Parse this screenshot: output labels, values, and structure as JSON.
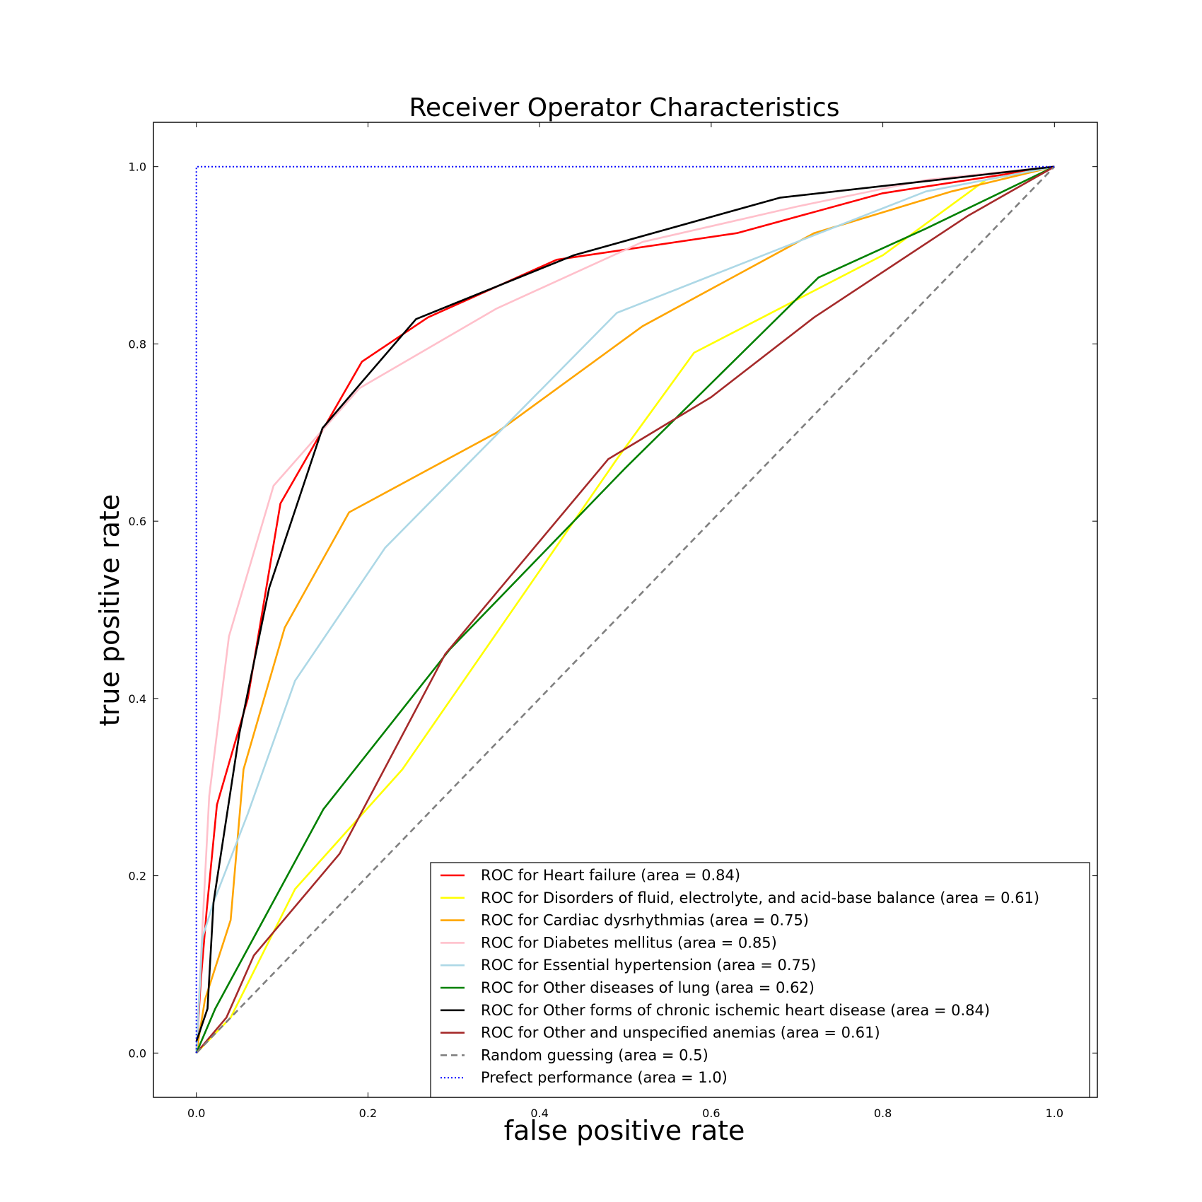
{
  "chart_data": {
    "type": "line",
    "title": "Receiver Operator Characteristics",
    "xlabel": "false positive rate",
    "ylabel": "true positive rate",
    "xlim": [
      -0.05,
      1.05
    ],
    "ylim": [
      -0.05,
      1.05
    ],
    "xticks": [
      "0.0",
      "0.2",
      "0.4",
      "0.6",
      "0.8",
      "1.0"
    ],
    "yticks": [
      "0.0",
      "0.2",
      "0.4",
      "0.6",
      "0.8",
      "1.0"
    ],
    "grid": false,
    "legend_position": "lower-right",
    "series": [
      {
        "name": "ROC for Heart failure (area = 0.84)",
        "color": "#ff0000",
        "style": "solid",
        "x": [
          0,
          0.005,
          0.012,
          0.024,
          0.06,
          0.098,
          0.193,
          0.27,
          0.42,
          0.63,
          0.8,
          1.0
        ],
        "y": [
          0,
          0.08,
          0.16,
          0.28,
          0.4,
          0.62,
          0.78,
          0.83,
          0.895,
          0.925,
          0.97,
          1.0
        ]
      },
      {
        "name": "ROC for Disorders of fluid, electrolyte, and acid-base balance (area = 0.61)",
        "color": "#ffff00",
        "style": "solid",
        "x": [
          0,
          0.04,
          0.115,
          0.24,
          0.49,
          0.58,
          0.8,
          0.92,
          1.0
        ],
        "y": [
          0,
          0.04,
          0.185,
          0.32,
          0.67,
          0.79,
          0.9,
          0.985,
          1.0
        ]
      },
      {
        "name": "ROC for Cardiac dysrhythmias (area = 0.75)",
        "color": "#ffa500",
        "style": "solid",
        "x": [
          0,
          0.01,
          0.04,
          0.055,
          0.103,
          0.178,
          0.35,
          0.52,
          0.72,
          0.88,
          1.0
        ],
        "y": [
          0,
          0.06,
          0.15,
          0.32,
          0.48,
          0.61,
          0.7,
          0.82,
          0.925,
          0.972,
          1.0
        ]
      },
      {
        "name": "ROC for Diabetes mellitus (area = 0.85)",
        "color": "#ffc0cb",
        "style": "solid",
        "x": [
          0,
          0.007,
          0.015,
          0.038,
          0.09,
          0.19,
          0.35,
          0.52,
          0.7,
          0.85,
          1.0
        ],
        "y": [
          0,
          0.14,
          0.29,
          0.47,
          0.64,
          0.75,
          0.84,
          0.915,
          0.955,
          0.985,
          1.0
        ]
      },
      {
        "name": "ROC for Essential hypertension (area = 0.75)",
        "color": "#add8e6",
        "style": "solid",
        "x": [
          0,
          0.007,
          0.02,
          0.06,
          0.115,
          0.22,
          0.49,
          0.7,
          0.85,
          1.0
        ],
        "y": [
          0,
          0.13,
          0.17,
          0.27,
          0.42,
          0.57,
          0.835,
          0.915,
          0.972,
          1.0
        ]
      },
      {
        "name": "ROC for Other diseases of lung (area = 0.62)",
        "color": "#008000",
        "style": "solid",
        "x": [
          0,
          0.022,
          0.148,
          0.295,
          0.5,
          0.725,
          0.85,
          1.0
        ],
        "y": [
          0,
          0.05,
          0.275,
          0.455,
          0.66,
          0.875,
          0.93,
          1.0
        ]
      },
      {
        "name": "ROC for Other forms of chronic ischemic heart disease (area = 0.84)",
        "color": "#000000",
        "style": "solid",
        "x": [
          0,
          0.013,
          0.02,
          0.05,
          0.085,
          0.147,
          0.2,
          0.256,
          0.44,
          0.68,
          1.0
        ],
        "y": [
          0.013,
          0.05,
          0.17,
          0.36,
          0.525,
          0.705,
          0.765,
          0.828,
          0.9,
          0.965,
          1.0
        ]
      },
      {
        "name": "ROC for Other and unspecified anemias (area = 0.61)",
        "color": "#a52a2a",
        "style": "solid",
        "x": [
          0,
          0.035,
          0.067,
          0.167,
          0.29,
          0.48,
          0.6,
          0.72,
          0.9,
          1.0
        ],
        "y": [
          0,
          0.04,
          0.11,
          0.225,
          0.45,
          0.67,
          0.74,
          0.83,
          0.945,
          1.0
        ]
      },
      {
        "name": "Random guessing (area = 0.5)",
        "color": "#808080",
        "style": "dashed",
        "x": [
          0,
          1
        ],
        "y": [
          0,
          1
        ]
      },
      {
        "name": "Prefect performance (area = 1.0)",
        "color": "#0000ff",
        "style": "dotted",
        "x": [
          0,
          0,
          1
        ],
        "y": [
          0,
          1,
          1
        ]
      }
    ]
  }
}
